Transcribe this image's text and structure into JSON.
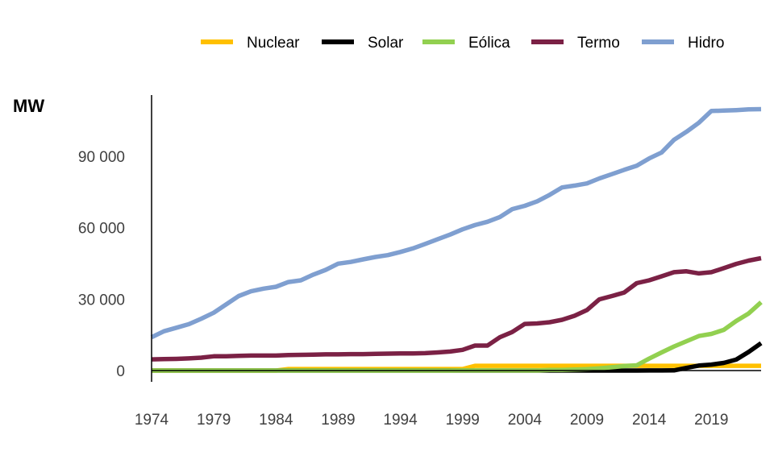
{
  "chart_data": {
    "type": "line",
    "title": "",
    "xlabel": "",
    "ylabel": "MW",
    "xlim": [
      1974,
      2023
    ],
    "ylim": [
      0,
      115000
    ],
    "grid": false,
    "legend_position": "top",
    "x_ticks": [
      "1974",
      "1979",
      "1984",
      "1989",
      "1994",
      "1999",
      "2004",
      "2009",
      "2014",
      "2019"
    ],
    "y_ticks": [
      {
        "value": 0,
        "label": "0"
      },
      {
        "value": 30000,
        "label": "30 000"
      },
      {
        "value": 60000,
        "label": "60 000"
      },
      {
        "value": 90000,
        "label": "90 000"
      }
    ],
    "x": [
      1974,
      1975,
      1976,
      1977,
      1978,
      1979,
      1980,
      1981,
      1982,
      1983,
      1984,
      1985,
      1986,
      1987,
      1988,
      1989,
      1990,
      1991,
      1992,
      1993,
      1994,
      1995,
      1996,
      1997,
      1998,
      1999,
      2000,
      2001,
      2002,
      2003,
      2004,
      2005,
      2006,
      2007,
      2008,
      2009,
      2010,
      2011,
      2012,
      2013,
      2014,
      2015,
      2016,
      2017,
      2018,
      2019,
      2020,
      2021,
      2022,
      2023
    ],
    "series": [
      {
        "name": "Nuclear",
        "color": "#FFC000",
        "values": [
          0,
          0,
          0,
          0,
          0,
          0,
          0,
          0,
          0,
          0,
          0,
          657,
          657,
          657,
          657,
          657,
          657,
          657,
          657,
          657,
          657,
          657,
          657,
          657,
          657,
          657,
          2007,
          2007,
          2007,
          2007,
          2007,
          2007,
          2007,
          2007,
          2007,
          2007,
          2007,
          2007,
          2007,
          2007,
          1990,
          1990,
          1990,
          1990,
          1990,
          1990,
          1990,
          1990,
          1990,
          1990
        ]
      },
      {
        "name": "Solar",
        "color": "#000000",
        "values": [
          0,
          0,
          0,
          0,
          0,
          0,
          0,
          0,
          0,
          0,
          0,
          0,
          0,
          0,
          0,
          0,
          0,
          0,
          0,
          0,
          0,
          0,
          0,
          0,
          0,
          0,
          0,
          0,
          0,
          0,
          0,
          0,
          0,
          0,
          0,
          0,
          0,
          0,
          0,
          0,
          20,
          40,
          80,
          1100,
          2100,
          2500,
          3200,
          4600,
          7800,
          11500
        ]
      },
      {
        "name": "Eólica",
        "color": "#92D050",
        "values": [
          0,
          0,
          0,
          0,
          0,
          0,
          0,
          0,
          0,
          0,
          0,
          0,
          0,
          0,
          0,
          0,
          0,
          0,
          0,
          0,
          0,
          0,
          0,
          0,
          0,
          20,
          20,
          20,
          20,
          30,
          30,
          30,
          240,
          250,
          400,
          600,
          930,
          1400,
          1900,
          2200,
          5000,
          7600,
          10100,
          12300,
          14500,
          15400,
          17100,
          20800,
          24000,
          28700
        ]
      },
      {
        "name": "Termo",
        "color": "#7B2145",
        "values": [
          4700,
          4800,
          4900,
          5100,
          5400,
          6000,
          6000,
          6200,
          6300,
          6300,
          6300,
          6500,
          6600,
          6700,
          6800,
          6800,
          6900,
          6900,
          7000,
          7100,
          7200,
          7200,
          7300,
          7600,
          8000,
          8700,
          10500,
          10500,
          14000,
          16200,
          19600,
          19800,
          20300,
          21300,
          23000,
          25400,
          29900,
          31300,
          32800,
          36700,
          37900,
          39600,
          41300,
          41700,
          40800,
          41300,
          43000,
          44800,
          46200,
          47200
        ]
      },
      {
        "name": "Hidro",
        "color": "#7F9FD0",
        "values": [
          14000,
          16500,
          18000,
          19500,
          21800,
          24300,
          27800,
          31300,
          33300,
          34400,
          35200,
          37200,
          37900,
          40300,
          42300,
          44900,
          45600,
          46700,
          47700,
          48500,
          49800,
          51300,
          53200,
          55200,
          57100,
          59300,
          61100,
          62500,
          64500,
          67800,
          69200,
          71100,
          73800,
          76900,
          77700,
          78600,
          80700,
          82500,
          84300,
          86000,
          89100,
          91600,
          96900,
          100300,
          104100,
          109000,
          109200,
          109400,
          109700,
          109800
        ]
      }
    ]
  }
}
